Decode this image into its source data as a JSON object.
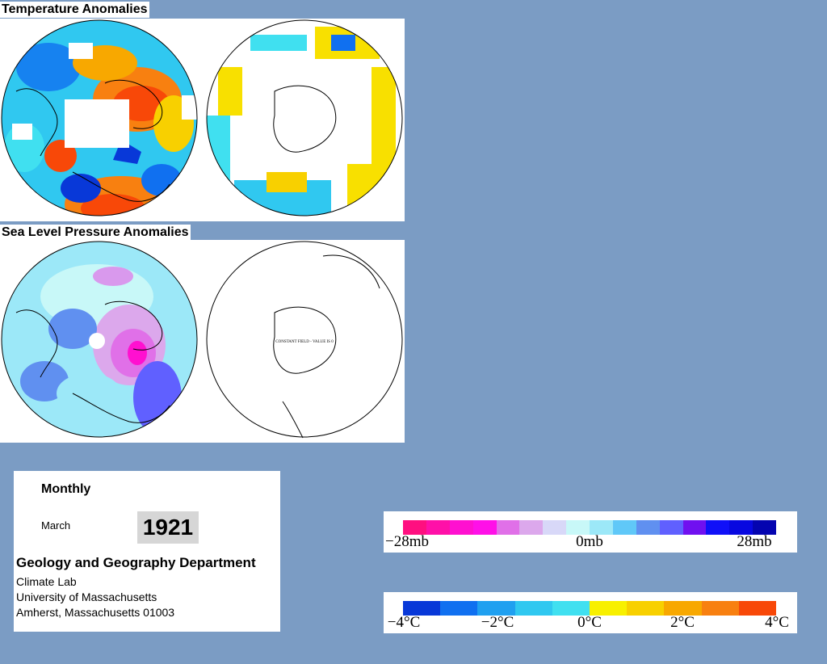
{
  "sections": {
    "temperature_title": "Temperature Anomalies",
    "slp_title": "Sea Level Pressure Anomalies"
  },
  "maps": {
    "slp_south_note": "CONSTANT FIELD - VALUE IS 0"
  },
  "info": {
    "product": "Monthly",
    "month": "March",
    "year": "1921",
    "department": "Geology and Geography Department",
    "lab": "Climate Lab",
    "university": "University of Massachusetts",
    "address": "Amherst, Massachusetts 01003"
  },
  "legends": {
    "pressure": {
      "labels": [
        "−28mb",
        "0mb",
        "28mb"
      ],
      "colors": [
        "#ff0f80",
        "#ff10a8",
        "#ff10d0",
        "#ff10e8",
        "#e070e8",
        "#dca8ec",
        "#d8d8f8",
        "#c8f8f8",
        "#9ce8f8",
        "#60c8f8",
        "#6090f0",
        "#6060ff",
        "#7010f0",
        "#1010f8",
        "#0808e0",
        "#0404b0"
      ]
    },
    "temperature": {
      "labels": [
        "−4°C",
        "−2°C",
        "0°C",
        "2°C",
        "4°C"
      ],
      "colors": [
        "#0838d8",
        "#1070f0",
        "#20a0f0",
        "#30c8f0",
        "#40e0f0",
        "#f8f000",
        "#f8d000",
        "#f8a800",
        "#f88010",
        "#f84808"
      ]
    }
  },
  "palette": {
    "background": "#7b9cc4",
    "warm": "#f07010",
    "cool": "#1050d8",
    "neutral_cool": "#38c0f0",
    "neutral_warm": "#f8e000"
  }
}
